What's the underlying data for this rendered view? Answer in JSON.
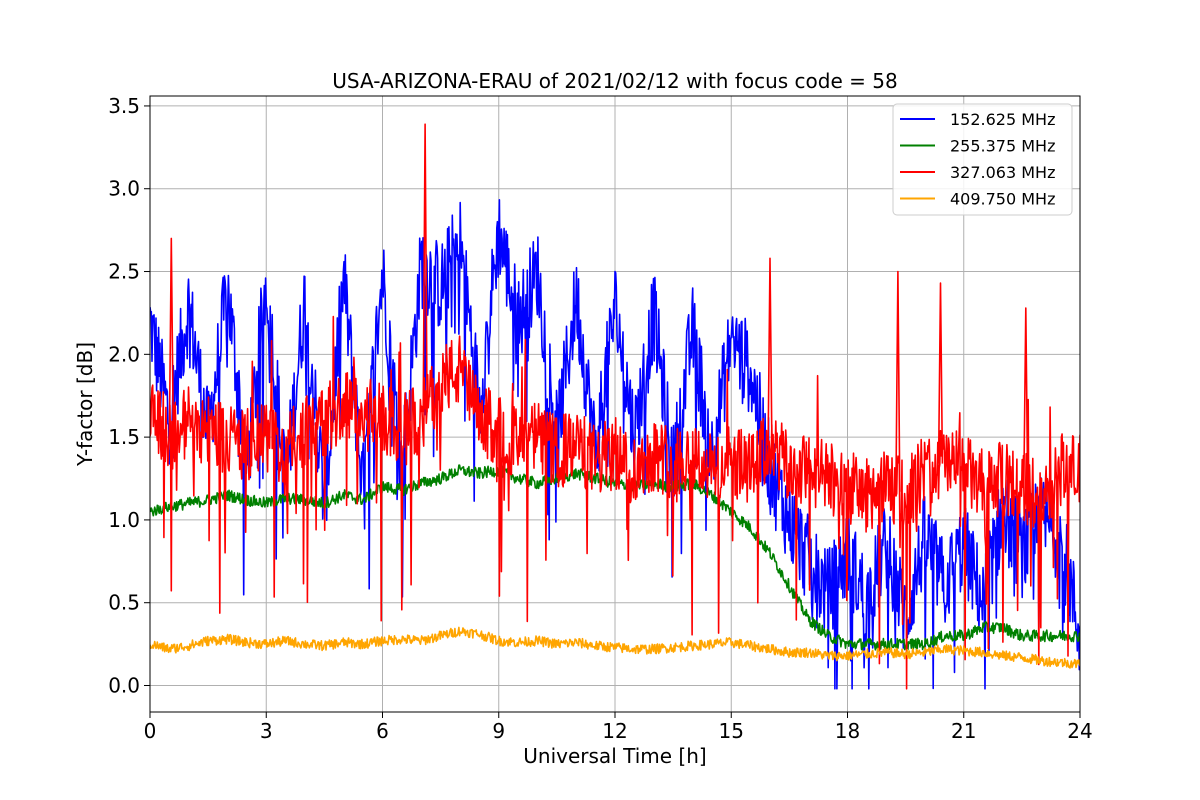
{
  "chart_data": {
    "type": "line",
    "title": "USA-ARIZONA-ERAU of 2021/02/12 with focus code = 58",
    "xlabel": "Universal Time [h]",
    "ylabel": "Y-factor [dB]",
    "xlim": [
      0,
      24
    ],
    "ylim": [
      -0.16,
      3.56
    ],
    "xticks": [
      0,
      3,
      6,
      9,
      12,
      15,
      18,
      21,
      24
    ],
    "xtick_labels": [
      "0",
      "3",
      "6",
      "9",
      "12",
      "15",
      "18",
      "21",
      "24"
    ],
    "yticks": [
      0.0,
      0.5,
      1.0,
      1.5,
      2.0,
      2.5,
      3.0,
      3.5
    ],
    "ytick_labels": [
      "0.0",
      "0.5",
      "1.0",
      "1.5",
      "2.0",
      "2.5",
      "3.0",
      "3.5"
    ],
    "grid": true,
    "legend_position": "top-right",
    "series": [
      {
        "name": "152.625 MHz",
        "color": "#0000ff",
        "x": [
          0,
          0.5,
          1,
          1.5,
          2,
          2.5,
          3,
          3.5,
          4,
          4.5,
          5,
          5.5,
          6,
          6.5,
          7,
          7.5,
          8,
          8.5,
          9,
          9.5,
          10,
          10.5,
          11,
          11.5,
          12,
          12.5,
          13,
          13.5,
          14,
          14.5,
          15,
          15.5,
          16,
          16.5,
          17,
          17.5,
          18,
          18.5,
          19,
          19.5,
          20,
          20.5,
          21,
          21.5,
          22,
          22.5,
          23,
          23.5,
          24
        ],
        "y": [
          2.2,
          1.6,
          2.3,
          1.5,
          2.4,
          1.3,
          2.45,
          1.2,
          2.35,
          1.1,
          2.45,
          1.2,
          2.5,
          1.3,
          2.55,
          2.4,
          2.7,
          1.7,
          2.75,
          2.2,
          2.5,
          1.5,
          2.35,
          1.4,
          2.3,
          1.5,
          2.25,
          1.3,
          2.15,
          1.4,
          2.1,
          1.9,
          1.3,
          1.0,
          0.75,
          0.55,
          0.8,
          0.5,
          0.85,
          0.4,
          0.9,
          0.6,
          0.85,
          0.5,
          1.05,
          0.8,
          1.0,
          0.9,
          0.3
        ]
      },
      {
        "name": "255.375 MHz",
        "color": "#008000",
        "x": [
          0,
          0.5,
          1,
          1.5,
          2,
          2.5,
          3,
          3.5,
          4,
          4.5,
          5,
          5.5,
          6,
          6.5,
          7,
          7.5,
          8,
          8.5,
          9,
          9.5,
          10,
          10.5,
          11,
          11.5,
          12,
          12.5,
          13,
          13.5,
          14,
          14.5,
          15,
          15.5,
          16,
          16.5,
          17,
          17.5,
          18,
          18.5,
          19,
          19.5,
          20,
          20.5,
          21,
          21.5,
          22,
          22.5,
          23,
          23.5,
          24
        ],
        "y": [
          1.05,
          1.08,
          1.1,
          1.12,
          1.15,
          1.12,
          1.1,
          1.13,
          1.12,
          1.1,
          1.15,
          1.12,
          1.2,
          1.18,
          1.22,
          1.25,
          1.3,
          1.28,
          1.3,
          1.25,
          1.22,
          1.25,
          1.28,
          1.25,
          1.22,
          1.2,
          1.22,
          1.2,
          1.22,
          1.15,
          1.05,
          0.95,
          0.8,
          0.6,
          0.4,
          0.3,
          0.25,
          0.25,
          0.25,
          0.25,
          0.25,
          0.3,
          0.3,
          0.35,
          0.35,
          0.3,
          0.3,
          0.3,
          0.3
        ]
      },
      {
        "name": "327.063 MHz",
        "color": "#ff0000",
        "x": [
          0,
          0.5,
          1,
          1.5,
          2,
          2.5,
          3,
          3.5,
          4,
          4.5,
          5,
          5.5,
          6,
          6.5,
          7,
          7.5,
          8,
          8.5,
          9,
          9.5,
          10,
          10.5,
          11,
          11.5,
          12,
          12.5,
          13,
          13.5,
          14,
          14.5,
          15,
          15.5,
          16,
          16.5,
          17,
          17.5,
          18,
          18.5,
          19,
          19.5,
          20,
          20.5,
          21,
          21.5,
          22,
          22.5,
          23,
          23.5,
          24
        ],
        "y": [
          1.7,
          1.5,
          1.6,
          1.55,
          1.5,
          1.45,
          1.5,
          1.4,
          1.55,
          1.6,
          1.7,
          1.65,
          1.6,
          1.55,
          1.6,
          1.85,
          1.9,
          1.6,
          1.55,
          1.45,
          1.5,
          1.4,
          1.45,
          1.35,
          1.4,
          1.3,
          1.4,
          1.35,
          1.4,
          1.3,
          1.35,
          1.3,
          1.45,
          1.3,
          1.3,
          1.25,
          1.2,
          1.15,
          1.2,
          1.15,
          1.3,
          1.35,
          1.3,
          1.2,
          1.25,
          1.2,
          1.15,
          1.3,
          1.3
        ],
        "peaks": [
          {
            "x": 0.55,
            "y": 2.7
          },
          {
            "x": 7.1,
            "y": 3.39
          },
          {
            "x": 16.0,
            "y": 2.58
          },
          {
            "x": 19.3,
            "y": 2.5
          },
          {
            "x": 20.4,
            "y": 2.43
          },
          {
            "x": 22.6,
            "y": 2.28
          }
        ]
      },
      {
        "name": "409.750 MHz",
        "color": "#ffa500",
        "x": [
          0,
          0.5,
          1,
          1.5,
          2,
          2.5,
          3,
          3.5,
          4,
          4.5,
          5,
          5.5,
          6,
          6.5,
          7,
          7.5,
          8,
          8.5,
          9,
          9.5,
          10,
          10.5,
          11,
          11.5,
          12,
          12.5,
          13,
          13.5,
          14,
          14.5,
          15,
          15.5,
          16,
          16.5,
          17,
          17.5,
          18,
          18.5,
          19,
          19.5,
          20,
          20.5,
          21,
          21.5,
          22,
          22.5,
          23,
          23.5,
          24
        ],
        "y": [
          0.25,
          0.22,
          0.24,
          0.27,
          0.28,
          0.26,
          0.25,
          0.27,
          0.25,
          0.24,
          0.26,
          0.25,
          0.27,
          0.28,
          0.27,
          0.3,
          0.33,
          0.31,
          0.27,
          0.26,
          0.27,
          0.25,
          0.26,
          0.24,
          0.23,
          0.22,
          0.22,
          0.23,
          0.24,
          0.25,
          0.26,
          0.24,
          0.22,
          0.2,
          0.2,
          0.18,
          0.18,
          0.19,
          0.2,
          0.19,
          0.2,
          0.22,
          0.21,
          0.2,
          0.18,
          0.17,
          0.15,
          0.14,
          0.13
        ]
      }
    ]
  }
}
